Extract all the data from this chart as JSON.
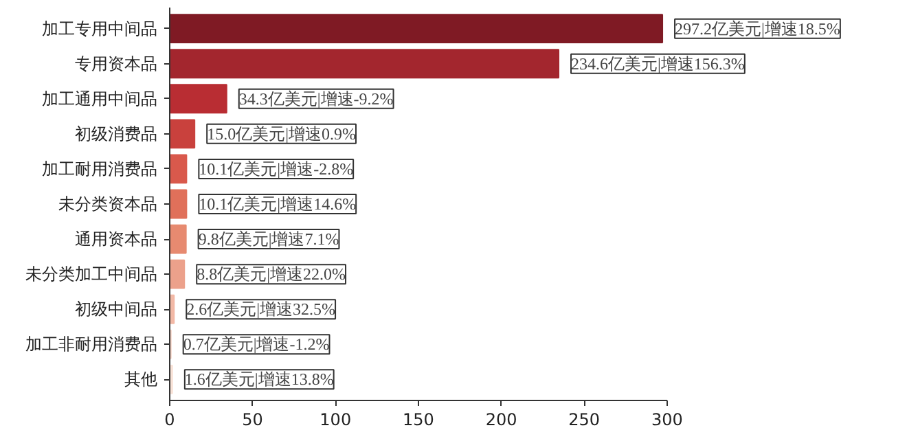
{
  "chart_data": {
    "type": "bar",
    "orientation": "horizontal",
    "categories": [
      "加工专用中间品",
      "专用资本品",
      "加工通用中间品",
      "初级消费品",
      "加工耐用消费品",
      "未分类资本品",
      "通用资本品",
      "未分类加工中间品",
      "初级中间品",
      "加工非耐用消费品",
      "其他"
    ],
    "values": [
      297.2,
      234.6,
      34.3,
      15.0,
      10.1,
      10.1,
      9.8,
      8.8,
      2.6,
      0.7,
      1.6
    ],
    "colors": [
      "#7f1a24",
      "#a3262e",
      "#b92d33",
      "#c9413d",
      "#d9594c",
      "#e0705a",
      "#e78a70",
      "#eca18b",
      "#f2b9a6",
      "#f6d2c4",
      "#f9e3d8"
    ],
    "value_labels": [
      "297.2亿美元|增速18.5%",
      "234.6亿美元|增速156.3%",
      "34.3亿美元|增速-9.2%",
      "15.0亿美元|增速0.9%",
      "10.1亿美元|增速-2.8%",
      "10.1亿美元|增速14.6%",
      "9.8亿美元|增速7.1%",
      "8.8亿美元|增速22.0%",
      "2.6亿美元|增速32.5%",
      "0.7亿美元|增速-1.2%",
      "1.6亿美元|增速13.8%"
    ],
    "xlim": [
      0,
      300
    ],
    "xticks": [
      0,
      50,
      100,
      150,
      200,
      250,
      300
    ]
  }
}
